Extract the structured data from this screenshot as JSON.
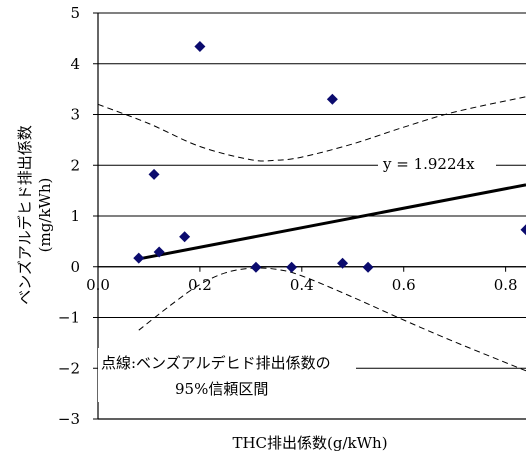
{
  "chart_data": {
    "type": "scatter",
    "xlabel": "THC排出係数(g/kWh)",
    "ylabel_line1": "ベンズアルデヒド排出係数",
    "ylabel_line2": "(mg/kWh)",
    "xlim": [
      0,
      0.84
    ],
    "ylim": [
      -3,
      5
    ],
    "x_ticks": [
      0,
      0.2,
      0.4,
      0.6,
      0.8
    ],
    "x_tick_labels": [
      "0.0",
      "0.2",
      "0.4",
      "0.6",
      "0.8"
    ],
    "y_ticks": [
      -3,
      -2,
      -1,
      0,
      1,
      2,
      3,
      4,
      5
    ],
    "y_tick_labels": [
      "−3",
      "−2",
      "−1",
      "0",
      "1",
      "2",
      "3",
      "4",
      "5"
    ],
    "grid": "horizontal",
    "series": [
      {
        "marker": "diamond",
        "color": "#0b0b6e",
        "points": [
          {
            "x": 0.08,
            "y": 0.17
          },
          {
            "x": 0.11,
            "y": 1.82
          },
          {
            "x": 0.12,
            "y": 0.29
          },
          {
            "x": 0.17,
            "y": 0.59
          },
          {
            "x": 0.2,
            "y": 4.34
          },
          {
            "x": 0.31,
            "y": -0.01
          },
          {
            "x": 0.38,
            "y": -0.01
          },
          {
            "x": 0.46,
            "y": 3.3
          },
          {
            "x": 0.48,
            "y": 0.07
          },
          {
            "x": 0.53,
            "y": -0.01
          },
          {
            "x": 0.84,
            "y": 0.73
          }
        ]
      }
    ],
    "regression": {
      "slope": 1.9224,
      "x_range": [
        0.08,
        0.84
      ],
      "label": "y = 1.9224x"
    },
    "confidence_band": {
      "upper": [
        {
          "x": 0.0,
          "y": 3.2
        },
        {
          "x": 0.1,
          "y": 2.82
        },
        {
          "x": 0.2,
          "y": 2.37
        },
        {
          "x": 0.3,
          "y": 2.11
        },
        {
          "x": 0.35,
          "y": 2.1
        },
        {
          "x": 0.4,
          "y": 2.16
        },
        {
          "x": 0.5,
          "y": 2.42
        },
        {
          "x": 0.6,
          "y": 2.75
        },
        {
          "x": 0.7,
          "y": 3.05
        },
        {
          "x": 0.84,
          "y": 3.35
        }
      ],
      "lower": [
        {
          "x": 0.08,
          "y": -1.25
        },
        {
          "x": 0.15,
          "y": -0.7
        },
        {
          "x": 0.2,
          "y": -0.35
        },
        {
          "x": 0.25,
          "y": -0.12
        },
        {
          "x": 0.3,
          "y": -0.03
        },
        {
          "x": 0.35,
          "y": -0.05
        },
        {
          "x": 0.4,
          "y": -0.18
        },
        {
          "x": 0.5,
          "y": -0.6
        },
        {
          "x": 0.6,
          "y": -1.05
        },
        {
          "x": 0.7,
          "y": -1.48
        },
        {
          "x": 0.84,
          "y": -2.05
        }
      ],
      "label_line1": "点線:ベンズアルデヒド排出係数の",
      "label_line2": "95%信頼区間"
    }
  }
}
